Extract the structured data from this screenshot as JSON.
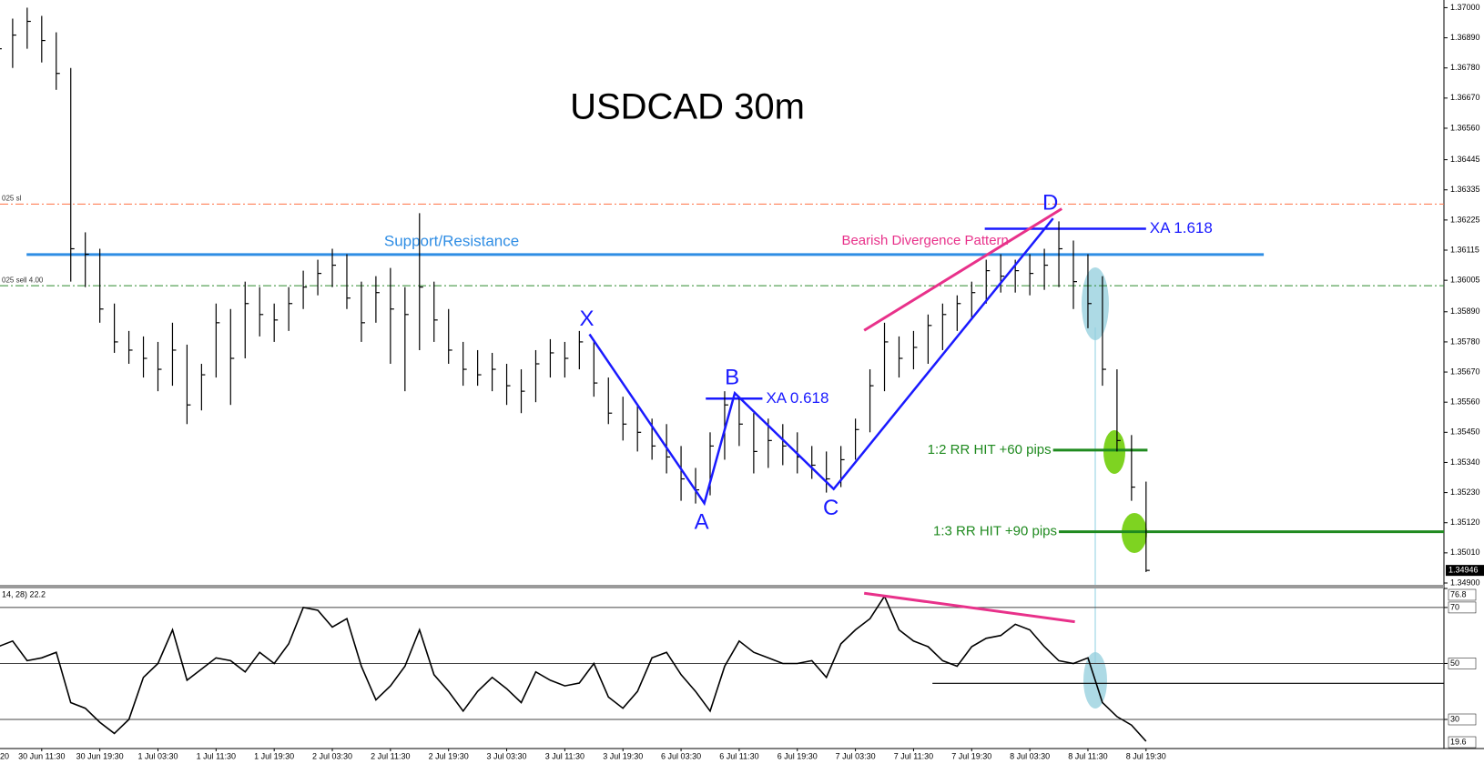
{
  "chart_data": [
    {
      "type": "ohlc",
      "title": "USDCAD 30m",
      "color": "#000000",
      "categories": [
        "20",
        null,
        null,
        null,
        "30 Jun 11:30",
        null,
        null,
        null,
        "30 Jun 19:30",
        null,
        null,
        null,
        "1 Jul 03:30",
        null,
        null,
        null,
        "1 Jul 11:30",
        null,
        null,
        null,
        "1 Jul 19:30",
        null,
        null,
        null,
        "2 Jul 03:30",
        null,
        null,
        null,
        "2 Jul 11:30",
        null,
        null,
        null,
        "2 Jul 19:30",
        null,
        null,
        null,
        "3 Jul 03:30",
        null,
        null,
        null,
        "3 Jul 11:30",
        null,
        null,
        null,
        "3 Jul 19:30",
        null,
        null,
        null,
        "6 Jul 03:30",
        null,
        null,
        null,
        "6 Jul 11:30",
        null,
        null,
        null,
        "6 Jul 19:30",
        null,
        null,
        null,
        "7 Jul 03:30",
        null,
        null,
        null,
        "7 Jul 11:30",
        null,
        null,
        null,
        "7 Jul 19:30",
        null,
        null,
        null,
        "8 Jul 03:30",
        null,
        null,
        null,
        "8 Jul 11:30",
        null,
        null,
        null,
        "8 Jul 19:30"
      ],
      "high": [
        null,
        1.3692,
        1.3696,
        1.37,
        1.3697,
        1.3691,
        1.3678,
        1.3618,
        1.3612,
        1.3592,
        1.3582,
        1.358,
        1.3578,
        1.3585,
        1.3577,
        1.357,
        1.3592,
        1.359,
        1.36,
        1.3598,
        1.3592,
        1.3598,
        1.3604,
        1.3608,
        1.3612,
        1.361,
        1.36,
        1.3602,
        1.3605,
        1.3598,
        1.3625,
        1.36,
        1.359,
        1.3578,
        1.3575,
        1.3574,
        1.357,
        1.3568,
        1.3575,
        1.3579,
        1.3578,
        1.3582,
        1.3578,
        1.3565,
        1.3558,
        1.3555,
        1.355,
        1.3548,
        1.354,
        1.3532,
        1.3545,
        1.356,
        1.3558,
        1.3552,
        1.355,
        1.3548,
        1.3545,
        1.354,
        1.3538,
        1.354,
        1.355,
        1.3568,
        1.3585,
        1.358,
        1.3582,
        1.3588,
        1.3592,
        1.3595,
        1.36,
        1.3608,
        1.361,
        1.3608,
        1.361,
        1.3612,
        1.3622,
        1.3615,
        1.361,
        1.3602,
        1.3568,
        1.3544,
        1.3527
      ],
      "low": [
        null,
        1.3671,
        1.3678,
        1.3685,
        1.368,
        1.367,
        1.36,
        1.3598,
        1.3585,
        1.3574,
        1.357,
        1.3565,
        1.356,
        1.3562,
        1.3548,
        1.3553,
        1.3565,
        1.3555,
        1.3572,
        1.358,
        1.3578,
        1.3582,
        1.359,
        1.3595,
        1.3598,
        1.359,
        1.3578,
        1.3585,
        1.357,
        1.356,
        1.3575,
        1.3578,
        1.357,
        1.3562,
        1.3562,
        1.356,
        1.3555,
        1.3552,
        1.3556,
        1.3565,
        1.3565,
        1.3568,
        1.3558,
        1.3548,
        1.3542,
        1.3538,
        1.3535,
        1.353,
        1.352,
        1.3519,
        1.3522,
        1.3535,
        1.354,
        1.353,
        1.3532,
        1.3533,
        1.353,
        1.3528,
        1.3523,
        1.3525,
        1.3535,
        1.3545,
        1.356,
        1.3565,
        1.3568,
        1.357,
        1.3575,
        1.3582,
        1.3586,
        1.3592,
        1.3596,
        1.3596,
        1.3595,
        1.3597,
        1.3598,
        1.359,
        1.3583,
        1.3562,
        1.3538,
        1.352,
        1.3494
      ],
      "close": [
        null,
        1.3685,
        1.369,
        1.3695,
        1.3688,
        1.3676,
        1.3612,
        1.361,
        1.359,
        1.3578,
        1.3575,
        1.3572,
        1.3568,
        1.3575,
        1.3555,
        1.3566,
        1.3585,
        1.3572,
        1.3592,
        1.3588,
        1.3586,
        1.3592,
        1.3598,
        1.3603,
        1.3606,
        1.3594,
        1.3585,
        1.3596,
        1.359,
        1.3588,
        1.3598,
        1.3586,
        1.3575,
        1.3568,
        1.3566,
        1.3568,
        1.3562,
        1.356,
        1.357,
        1.3574,
        1.3572,
        1.3578,
        1.3563,
        1.3552,
        1.3548,
        1.3545,
        1.354,
        1.3536,
        1.3528,
        1.3524,
        1.354,
        1.3555,
        1.3548,
        1.3538,
        1.3542,
        1.354,
        1.3536,
        1.3533,
        1.3528,
        1.3535,
        1.3546,
        1.3562,
        1.3578,
        1.3572,
        1.3576,
        1.3584,
        1.3588,
        1.3592,
        1.3596,
        1.3604,
        1.3602,
        1.3604,
        1.3603,
        1.3606,
        1.3612,
        1.36,
        1.3592,
        1.3568,
        1.3542,
        1.3525,
        1.34946
      ],
      "xlim": [
        1.13,
        100.5
      ],
      "ylim": [
        1.3489,
        1.37028
      ],
      "yticks": [
        {
          "value": 1.37,
          "label": "1.37000"
        },
        {
          "value": 1.3689,
          "label": "1.36890"
        },
        {
          "value": 1.3678,
          "label": "1.36780"
        },
        {
          "value": 1.3667,
          "label": "1.36670"
        },
        {
          "value": 1.3656,
          "label": "1.36560"
        },
        1.36445,
        1.36335,
        1.36225,
        1.36115,
        1.36005,
        {
          "value": 1.3589,
          "label": "1.35890"
        },
        {
          "value": 1.3578,
          "label": "1.35780"
        },
        {
          "value": 1.3567,
          "label": "1.35670"
        },
        {
          "value": 1.3556,
          "label": "1.35560"
        },
        {
          "value": 1.3545,
          "label": "1.35450"
        },
        {
          "value": 1.3534,
          "label": "1.35340"
        },
        {
          "value": 1.3523,
          "label": "1.35230"
        },
        {
          "value": 1.3512,
          "label": "1.35120"
        },
        {
          "value": 1.3501,
          "label": "1.35010"
        },
        {
          "value": 1.349,
          "label": "1.34900"
        }
      ],
      "levels": [
        {
          "label": "025 sl",
          "value": 1.36283,
          "color": "#ff7043",
          "dash": "dashdot"
        },
        {
          "label": "025 sell 4.00",
          "value": 1.35985,
          "color": "#2e8b2e",
          "dash": "dashdot"
        },
        {
          "label": "Support/Resistance",
          "value": 1.36099,
          "color": "#2f8de4",
          "x": [
            2.96,
            88.1
          ]
        },
        {
          "label": "XA 1.618",
          "value": 1.36193,
          "color": "#1a1aff",
          "x": [
            68.9,
            80
          ]
        },
        {
          "label": "XA 0.618",
          "value": 1.35573,
          "color": "#1a1aff",
          "x": [
            49.7,
            53.6
          ]
        },
        {
          "label": "1:2 RR HIT +60 pips",
          "value": 1.35385,
          "color": "#1f8a1f",
          "x": [
            73.6,
            80.1
          ]
        },
        {
          "label": "1:3 RR HIT +90 pips",
          "value": 1.35087,
          "color": "#1f8a1f",
          "x": [
            74,
            100.5
          ]
        }
      ],
      "pattern": {
        "color": "#1a1aff",
        "points": [
          {
            "label": "X",
            "x": 41.7,
            "y": 1.35808
          },
          {
            "label": "A",
            "x": 49.6,
            "y": 1.35191
          },
          {
            "label": "B",
            "x": 51.7,
            "y": 1.35593
          },
          {
            "label": "C",
            "x": 58.5,
            "y": 1.35243
          },
          {
            "label": "D",
            "x": 73.6,
            "y": 1.36231
          }
        ]
      },
      "divergence": {
        "label": "Bearish Divergence Pattern",
        "color": "#e8318a",
        "x": [
          60.6,
          74.2
        ],
        "y": [
          1.35822,
          1.36266
        ]
      }
    },
    {
      "type": "line",
      "label": "14, 28) 22.2",
      "color": "#000000",
      "values": [
        null,
        56,
        58,
        51,
        52,
        54,
        36,
        34,
        29,
        25,
        30,
        45,
        50,
        62,
        44,
        48,
        52,
        51,
        47,
        54,
        50,
        57,
        70,
        69,
        63,
        66,
        49,
        37,
        42,
        49,
        62,
        46,
        40,
        33,
        40,
        45,
        41,
        36,
        47,
        44,
        42,
        43,
        50,
        38,
        34,
        40,
        52,
        54,
        46,
        40,
        33,
        49,
        58,
        54,
        52,
        50,
        50,
        51,
        45,
        57,
        62,
        66,
        74,
        62,
        58,
        56,
        51,
        49,
        56,
        59,
        60,
        64,
        62,
        56,
        51,
        50,
        52,
        36,
        31,
        28,
        22.2
      ],
      "ylim": [
        19.6,
        76.8
      ],
      "yticks": [
        76.8,
        70,
        50,
        30,
        19.6
      ],
      "levels": [
        {
          "value": 42.9,
          "x": [
            65.3,
            100.5
          ],
          "color": "#000000"
        }
      ],
      "divergence": {
        "color": "#e8318a",
        "x": [
          60.6,
          75.1
        ],
        "y": [
          75.1,
          64.9
        ]
      }
    }
  ]
}
